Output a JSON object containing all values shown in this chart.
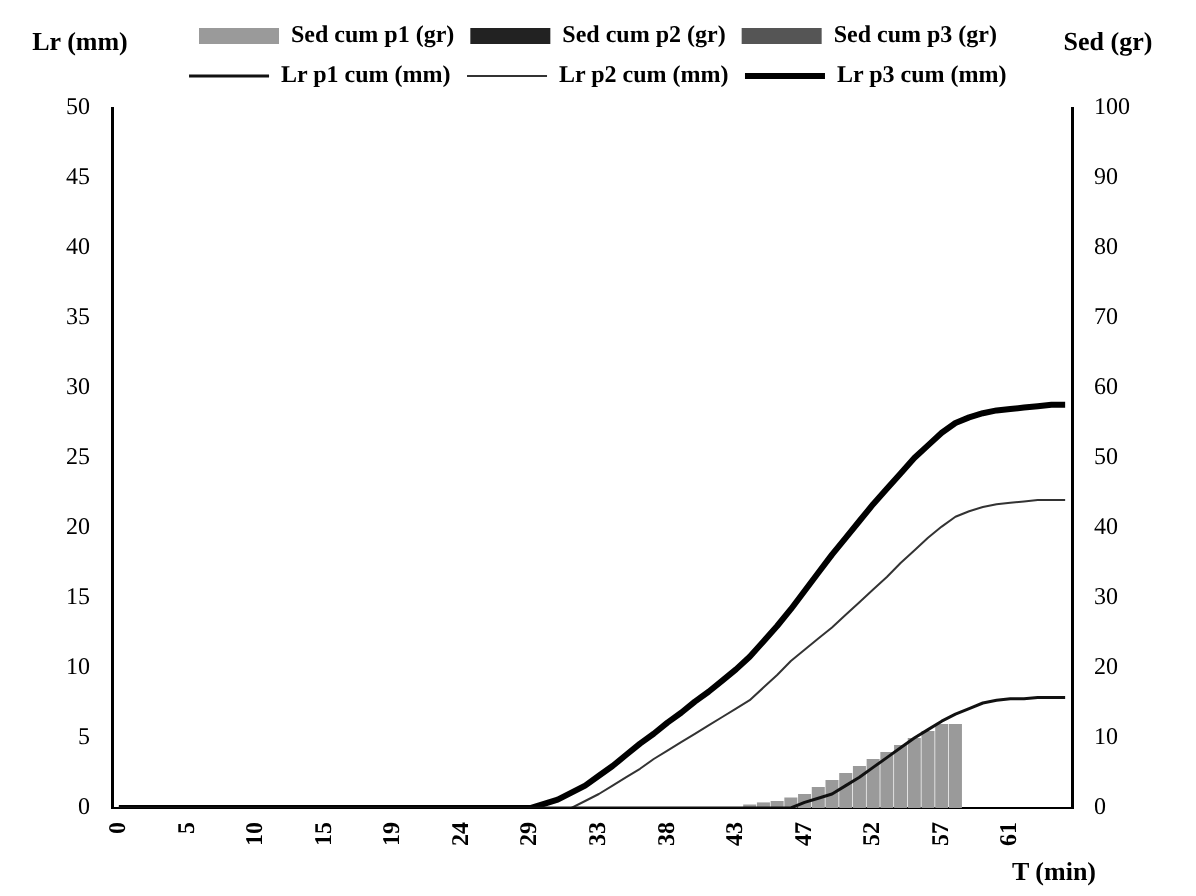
{
  "chart_data": {
    "type": "line",
    "categories": [
      "0",
      null,
      null,
      null,
      null,
      "5",
      null,
      null,
      null,
      null,
      "10",
      null,
      null,
      null,
      null,
      "15",
      null,
      null,
      null,
      null,
      "19",
      null,
      null,
      null,
      null,
      "24",
      null,
      null,
      null,
      null,
      "29",
      null,
      null,
      null,
      null,
      "33",
      null,
      null,
      null,
      null,
      "38",
      null,
      null,
      null,
      null,
      "43",
      null,
      null,
      null,
      null,
      "47",
      null,
      null,
      null,
      null,
      "52",
      null,
      null,
      null,
      null,
      "57",
      null,
      null,
      null,
      null,
      "61",
      null,
      null,
      null,
      null
    ],
    "xlabel": "T (min)",
    "ylabel": "Lr (mm)",
    "y2label": "Sed (gr)",
    "ylim": [
      0,
      50
    ],
    "yticks": [
      0,
      5,
      10,
      15,
      20,
      25,
      30,
      35,
      40,
      45,
      50
    ],
    "y2lim": [
      0,
      100
    ],
    "y2ticks": [
      0,
      10,
      20,
      30,
      40,
      50,
      60,
      70,
      80,
      90,
      100
    ],
    "grid": false,
    "legend": "top",
    "series": [
      {
        "name": "Sed cum p1 (gr)",
        "type": "bar",
        "axis": "y2",
        "color": "#9a9a9a",
        "values": [
          0,
          0,
          0,
          0,
          0,
          0,
          0,
          0,
          0,
          0,
          0,
          0,
          0,
          0,
          0,
          0,
          0,
          0,
          0,
          0,
          0,
          0,
          0,
          0,
          0,
          0,
          0,
          0,
          0,
          0,
          0,
          0,
          0,
          0,
          0,
          0,
          0,
          0,
          0,
          0,
          0,
          0,
          0,
          0,
          0,
          0,
          0.5,
          0.8,
          1,
          1.5,
          2,
          3,
          4,
          5,
          6,
          7,
          8,
          9,
          10,
          11,
          12,
          12,
          0,
          0,
          0,
          0,
          0,
          0,
          0,
          0
        ]
      },
      {
        "name": "Sed cum p2 (gr)",
        "type": "bar",
        "axis": "y2",
        "color": "#222222",
        "values": [
          0,
          0,
          0,
          0,
          0,
          0,
          0,
          0,
          0,
          0,
          0,
          0,
          0,
          0,
          0,
          0,
          0,
          0,
          0,
          0,
          0,
          0,
          0,
          0,
          0,
          0,
          0,
          0,
          0,
          0,
          0,
          0,
          0,
          0,
          0,
          0,
          0,
          0,
          0,
          0,
          0,
          0,
          0,
          0,
          0,
          0,
          0,
          0,
          0,
          0,
          0,
          0,
          0,
          0,
          0,
          0,
          0,
          0,
          0,
          0,
          0,
          0,
          0,
          0,
          0,
          0,
          0,
          0,
          0,
          0
        ]
      },
      {
        "name": "Sed cum p3 (gr)",
        "type": "bar",
        "axis": "y2",
        "color": "#555555",
        "values": [
          0,
          0,
          0,
          0,
          0,
          0,
          0,
          0,
          0,
          0,
          0,
          0,
          0,
          0,
          0,
          0,
          0,
          0,
          0,
          0,
          0,
          0,
          0,
          0,
          0,
          0,
          0,
          0,
          0,
          0,
          0,
          0,
          0,
          0,
          0,
          0,
          0,
          0,
          0,
          0,
          0,
          0,
          0,
          0,
          0,
          0,
          0,
          0,
          0,
          0,
          0,
          0,
          0,
          0,
          0,
          0,
          0,
          0,
          0,
          0,
          0,
          0,
          0,
          0,
          0,
          0,
          0,
          0,
          0,
          0
        ]
      },
      {
        "name": "Lr p1 cum (mm)",
        "color": "#111111",
        "values": [
          0,
          0,
          0,
          0,
          0,
          0,
          0,
          0,
          0,
          0,
          0,
          0,
          0,
          0,
          0,
          0,
          0,
          0,
          0,
          0,
          0,
          0,
          0,
          0,
          0,
          0,
          0,
          0,
          0,
          0,
          0,
          0,
          0,
          0,
          0,
          0,
          0,
          0,
          0,
          0,
          0,
          0,
          0,
          0,
          0,
          0,
          0,
          0,
          0,
          0,
          0.4,
          0.7,
          1.0,
          1.6,
          2.2,
          2.9,
          3.6,
          4.3,
          5.0,
          5.6,
          6.2,
          6.7,
          7.1,
          7.5,
          7.7,
          7.8,
          7.8,
          7.9,
          7.9,
          7.9
        ]
      },
      {
        "name": "Lr p2 cum (mm)",
        "color": "#333333",
        "values": [
          0,
          0,
          0,
          0,
          0,
          0,
          0,
          0,
          0,
          0,
          0,
          0,
          0,
          0,
          0,
          0,
          0,
          0,
          0,
          0,
          0,
          0,
          0,
          0,
          0,
          0,
          0,
          0,
          0,
          0,
          0,
          0,
          0,
          0,
          0.5,
          1.0,
          1.6,
          2.2,
          2.8,
          3.5,
          4.1,
          4.7,
          5.3,
          5.9,
          6.5,
          7.1,
          7.7,
          8.6,
          9.5,
          10.5,
          11.3,
          12.1,
          12.9,
          13.8,
          14.7,
          15.6,
          16.5,
          17.5,
          18.4,
          19.3,
          20.1,
          20.8,
          21.2,
          21.5,
          21.7,
          21.8,
          21.9,
          22,
          22,
          22
        ]
      },
      {
        "name": "Lr p3 cum (mm)",
        "color": "#000000",
        "values": [
          0,
          0,
          0,
          0,
          0,
          0,
          0,
          0,
          0,
          0,
          0,
          0,
          0,
          0,
          0,
          0,
          0,
          0,
          0,
          0,
          0,
          0,
          0,
          0,
          0,
          0,
          0,
          0,
          0,
          0,
          0,
          0.3,
          0.6,
          1.1,
          1.6,
          2.3,
          3.0,
          3.8,
          4.6,
          5.3,
          6.1,
          6.8,
          7.6,
          8.3,
          9.1,
          9.9,
          10.8,
          11.9,
          13.0,
          14.2,
          15.5,
          16.8,
          18.1,
          19.3,
          20.5,
          21.7,
          22.8,
          23.9,
          25.0,
          25.9,
          26.8,
          27.5,
          27.9,
          28.2,
          28.4,
          28.5,
          28.6,
          28.7,
          28.8,
          28.8
        ]
      }
    ]
  }
}
